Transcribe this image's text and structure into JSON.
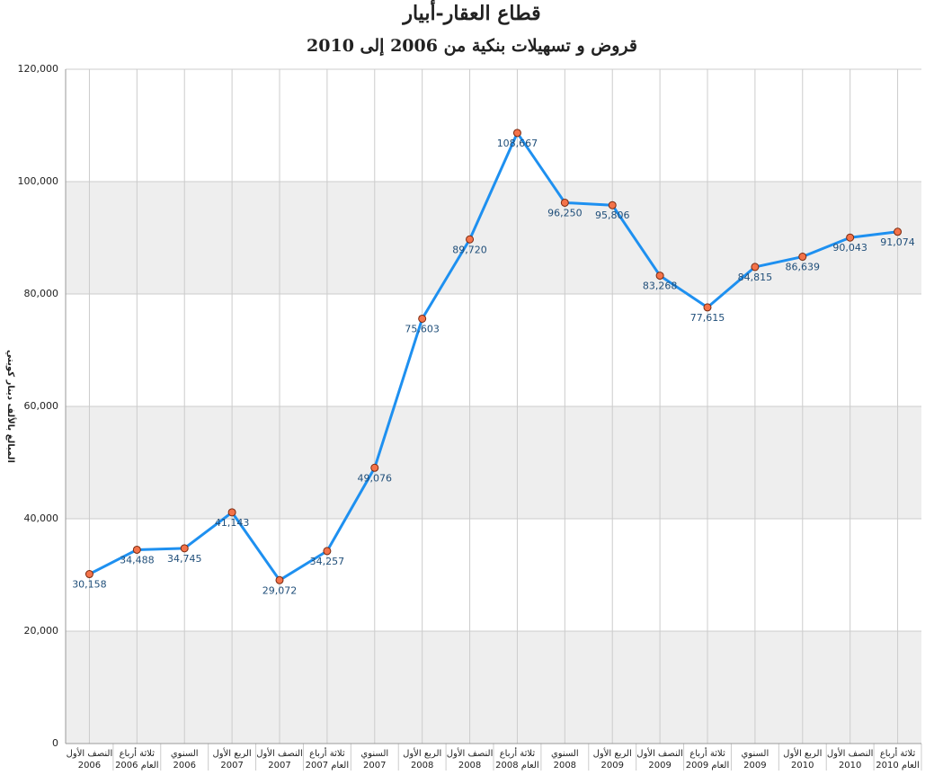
{
  "chart_data": {
    "type": "line",
    "title": "قطاع العقار-أبيار",
    "subtitle": "قروض و تسهيلات بنكية من 2006 إلى 2010",
    "y_label": "المبالغ بالألف دينار كويتي",
    "categories": [
      [
        "النصف الأول",
        "2006"
      ],
      [
        "ثلاثة أرباع",
        "العام 2006"
      ],
      [
        "السنوي",
        "2006"
      ],
      [
        "الربع الأول",
        "2007"
      ],
      [
        "النصف الأول",
        "2007"
      ],
      [
        "ثلاثة أرباع",
        "العام 2007"
      ],
      [
        "السنوي",
        "2007"
      ],
      [
        "الربع الأول",
        "2008"
      ],
      [
        "النصف الأول",
        "2008"
      ],
      [
        "ثلاثة أرباع",
        "العام 2008"
      ],
      [
        "السنوي",
        "2008"
      ],
      [
        "الربع الأول",
        "2009"
      ],
      [
        "النصف الأول",
        "2009"
      ],
      [
        "ثلاثة أرباع",
        "العام 2009"
      ],
      [
        "السنوي",
        "2009"
      ],
      [
        "الربع الأول",
        "2010"
      ],
      [
        "النصف الأول",
        "2010"
      ],
      [
        "ثلاثة أرباع",
        "العام 2010"
      ]
    ],
    "series": [
      {
        "color": "#1e90f0",
        "marker_color": "#f4734a",
        "values": [
          30158,
          34488,
          34745,
          41143,
          29072,
          34257,
          49076,
          75603,
          89720,
          108667,
          96250,
          95806,
          83268,
          77615,
          84815,
          86639,
          90043,
          91074
        ],
        "value_labels": [
          "30,158",
          "34,488",
          "34,745",
          "41,143",
          "29,072",
          "34,257",
          "49,076",
          "75,603",
          "89,720",
          "108,667",
          "96,250",
          "95,806",
          "83,268",
          "77,615",
          "84,815",
          "86,639",
          "90,043",
          "91,074"
        ]
      }
    ],
    "ylim": [
      0,
      120000
    ],
    "yticks": [
      0,
      {
        "value": 20000,
        "label": "20,000"
      },
      {
        "value": 40000,
        "label": "40,000"
      },
      {
        "value": 60000,
        "label": "60,000"
      },
      {
        "value": 80000,
        "label": "80,000"
      },
      {
        "value": 100000,
        "label": "100,000"
      },
      {
        "value": 120000,
        "label": "120,000"
      }
    ],
    "grid": true
  }
}
